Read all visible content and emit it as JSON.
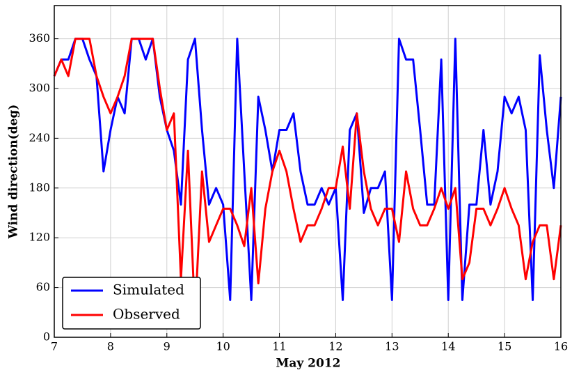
{
  "chart_data": {
    "type": "line",
    "xlabel": "May 2012",
    "ylabel": "Wind direction(deg)",
    "x": [
      7,
      7.125,
      7.25,
      7.375,
      7.5,
      7.625,
      7.75,
      7.875,
      8,
      8.125,
      8.25,
      8.375,
      8.5,
      8.625,
      8.75,
      8.875,
      9,
      9.125,
      9.25,
      9.375,
      9.5,
      9.625,
      9.75,
      9.875,
      10,
      10.125,
      10.25,
      10.375,
      10.5,
      10.625,
      10.75,
      10.875,
      11,
      11.125,
      11.25,
      11.375,
      11.5,
      11.625,
      11.75,
      11.875,
      12,
      12.125,
      12.25,
      12.375,
      12.5,
      12.625,
      12.75,
      12.875,
      13,
      13.125,
      13.25,
      13.375,
      13.5,
      13.625,
      13.75,
      13.875,
      14,
      14.125,
      14.25,
      14.375,
      14.5,
      14.625,
      14.75,
      14.875,
      15,
      15.125,
      15.25,
      15.375,
      15.5,
      15.625,
      15.75,
      15.875,
      16
    ],
    "series": [
      {
        "name": "Simulated",
        "color": "#0000ff",
        "values": [
          315,
          335,
          335,
          360,
          360,
          335,
          315,
          200,
          250,
          290,
          270,
          360,
          360,
          335,
          360,
          290,
          250,
          225,
          160,
          335,
          360,
          250,
          160,
          180,
          160,
          45,
          360,
          200,
          45,
          290,
          250,
          200,
          250,
          250,
          270,
          200,
          160,
          160,
          180,
          160,
          180,
          45,
          250,
          270,
          150,
          180,
          180,
          200,
          45,
          360,
          335,
          335,
          250,
          160,
          160,
          335,
          45,
          360,
          45,
          160,
          160,
          250,
          160,
          200,
          290,
          270,
          290,
          250,
          45,
          340,
          250,
          180,
          290
        ]
      },
      {
        "name": "Observed",
        "color": "#ff0000",
        "values": [
          315,
          335,
          315,
          360,
          360,
          360,
          315,
          290,
          270,
          290,
          315,
          360,
          360,
          360,
          360,
          300,
          250,
          270,
          70,
          225,
          25,
          200,
          115,
          135,
          155,
          155,
          135,
          110,
          180,
          65,
          155,
          200,
          225,
          200,
          155,
          115,
          135,
          135,
          155,
          180,
          180,
          230,
          155,
          270,
          200,
          155,
          135,
          155,
          155,
          115,
          200,
          155,
          135,
          135,
          155,
          180,
          155,
          180,
          70,
          90,
          155,
          155,
          135,
          155,
          180,
          155,
          135,
          70,
          115,
          135,
          135,
          70,
          135
        ]
      }
    ],
    "xlim": [
      7,
      16
    ],
    "xticks": [
      7,
      8,
      9,
      10,
      11,
      12,
      13,
      14,
      15,
      16
    ],
    "ylim": [
      0,
      400
    ],
    "yticks": [
      0,
      60,
      120,
      180,
      240,
      300,
      360
    ],
    "grid": true,
    "legend": "lower left"
  }
}
